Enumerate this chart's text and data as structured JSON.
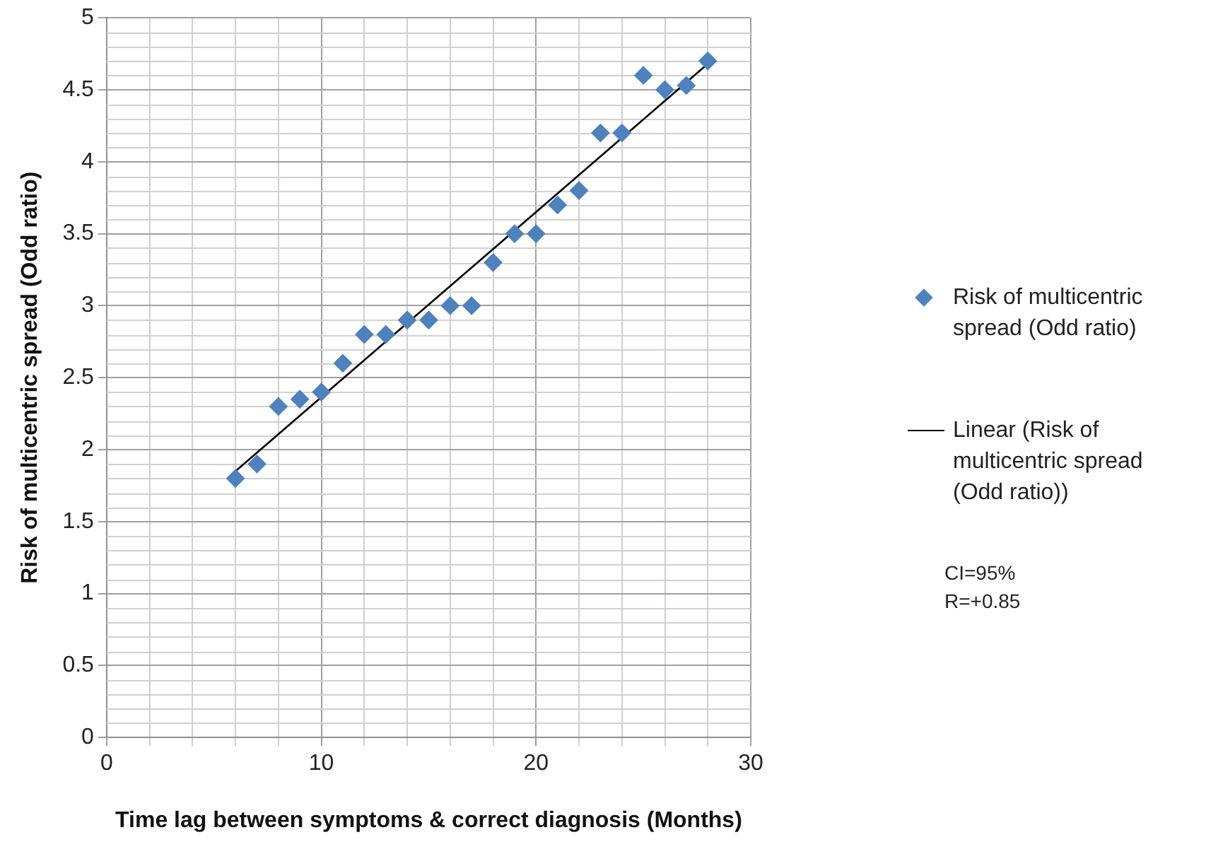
{
  "chart_data": {
    "type": "scatter",
    "xlabel": "Time lag between symptoms & correct diagnosis (Months)",
    "ylabel": "Risk of multicentric spread (Odd ratio)",
    "xlim": [
      0,
      30
    ],
    "xticks": [
      0,
      {
        "value": 2,
        "label": null
      },
      {
        "value": 4,
        "label": null
      },
      {
        "value": 6,
        "label": null
      },
      {
        "value": 8,
        "label": null
      },
      10,
      {
        "value": 12,
        "label": null
      },
      {
        "value": 14,
        "label": null
      },
      {
        "value": 16,
        "label": null
      },
      {
        "value": 18,
        "label": null
      },
      20,
      {
        "value": 22,
        "label": null
      },
      {
        "value": 24,
        "label": null
      },
      {
        "value": 26,
        "label": null
      },
      {
        "value": 28,
        "label": null
      },
      30
    ],
    "ylim": [
      0,
      5
    ],
    "yticks": [
      0,
      0.5,
      1,
      1.5,
      2,
      2.5,
      3,
      3.5,
      4,
      4.5,
      5
    ],
    "grid": true,
    "legend": "right",
    "series": [
      {
        "name": "Risk of multicentric spread (Odd ratio)",
        "marker": "diamond",
        "color": "#4f81bd",
        "x": [
          6,
          7,
          8,
          9,
          10,
          11,
          12,
          13,
          14,
          15,
          16,
          17,
          18,
          19,
          20,
          21,
          22,
          23,
          24,
          25,
          26,
          27,
          28
        ],
        "values": [
          1.8,
          1.9,
          2.3,
          2.35,
          2.4,
          2.6,
          2.8,
          2.8,
          2.9,
          2.9,
          3.0,
          3.0,
          3.3,
          3.5,
          3.5,
          3.7,
          3.8,
          4.2,
          4.2,
          4.6,
          4.5,
          4.53,
          4.7
        ]
      },
      {
        "name": "Linear (Risk of multicentric spread (Odd ratio))",
        "type": "line",
        "marker": "none",
        "line_style": "solid",
        "color": "#000000",
        "x": [
          6,
          28
        ],
        "values": [
          1.85,
          4.68
        ]
      }
    ],
    "annotations": [
      "CI=95%",
      "R=+0.85"
    ]
  }
}
